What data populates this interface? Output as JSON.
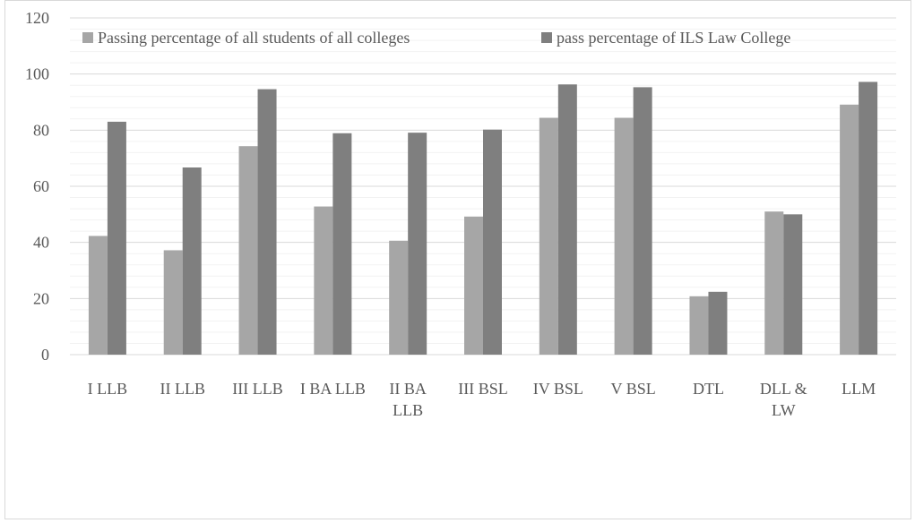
{
  "chart_data": {
    "type": "bar",
    "categories": [
      [
        "I LLB"
      ],
      [
        "II LLB"
      ],
      [
        "III LLB"
      ],
      [
        "I BA LLB"
      ],
      [
        "II BA",
        "LLB"
      ],
      [
        "III BSL"
      ],
      [
        "IV BSL"
      ],
      [
        "V BSL"
      ],
      [
        "DTL"
      ],
      [
        "DLL &",
        "LW"
      ],
      [
        "LLM"
      ]
    ],
    "series": [
      {
        "name": "Passing percentage of all students of all colleges",
        "color": "#a6a6a6",
        "values": [
          42.3,
          37.2,
          74.3,
          52.8,
          40.6,
          49.2,
          84.4,
          84.4,
          20.8,
          51.0,
          89.1
        ]
      },
      {
        "name": "pass percentage of ILS Law College",
        "color": "#7f7f7f",
        "values": [
          83.0,
          66.7,
          94.6,
          78.9,
          79.1,
          80.2,
          96.3,
          95.3,
          22.4,
          50.0,
          97.2
        ]
      }
    ],
    "yticks": [
      0,
      20,
      40,
      60,
      80,
      100,
      120
    ],
    "ylim": [
      0,
      120
    ],
    "grid": true,
    "minor_grid": true,
    "legend_position": "top-left"
  }
}
